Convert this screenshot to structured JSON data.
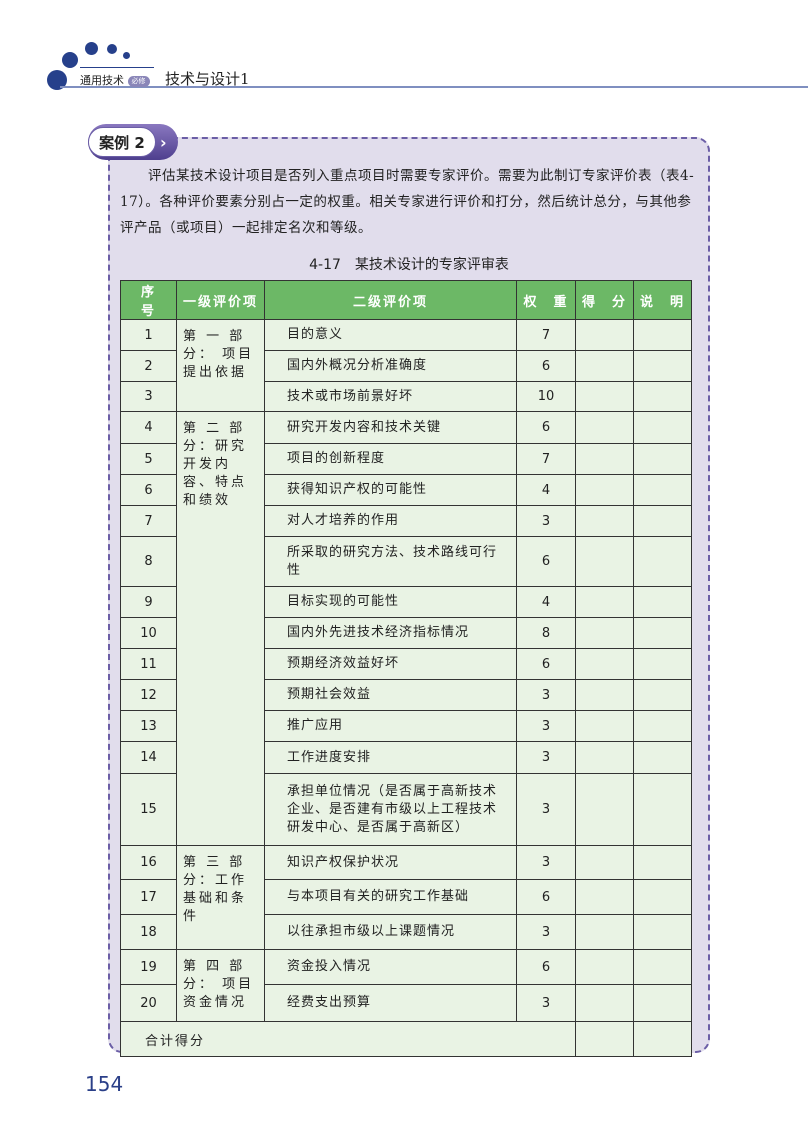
{
  "header": {
    "series": "通用技术",
    "badge": "必修",
    "book": "技术与设计1"
  },
  "case": {
    "label": "案例 2",
    "paragraph": "评估某技术设计项目是否列入重点项目时需要专家评价。需要为此制订专家评价表（表4-17）。各种评价要素分别占一定的权重。相关专家进行评价和打分，然后统计总分，与其他参评产品（或项目）一起排定名次和等级。"
  },
  "table": {
    "caption": "4-17　某技术设计的专家评审表",
    "headers": [
      "序　号",
      "一级评价项",
      "二级评价项",
      "权　重",
      "得　分",
      "说　明"
    ],
    "groups": [
      {
        "label": "第 一 部分： 项目提出依据",
        "rows": [
          [
            "1",
            "目的意义",
            "7"
          ],
          [
            "2",
            "国内外概况分析准确度",
            "6"
          ],
          [
            "3",
            "技术或市场前景好坏",
            "10"
          ]
        ]
      },
      {
        "label": "第 二 部分：研究开发内容、特点和绩效",
        "rows": [
          [
            "4",
            "研究开发内容和技术关键",
            "6"
          ],
          [
            "5",
            "项目的创新程度",
            "7"
          ],
          [
            "6",
            "获得知识产权的可能性",
            "4"
          ],
          [
            "7",
            "对人才培养的作用",
            "3"
          ],
          [
            "8",
            "所采取的研究方法、技术路线可行性",
            "6"
          ],
          [
            "9",
            "目标实现的可能性",
            "4"
          ],
          [
            "10",
            "国内外先进技术经济指标情况",
            "8"
          ],
          [
            "11",
            "预期经济效益好坏",
            "6"
          ],
          [
            "12",
            "预期社会效益",
            "3"
          ],
          [
            "13",
            "推广应用",
            "3"
          ],
          [
            "14",
            "工作进度安排",
            "3"
          ],
          [
            "15",
            "承担单位情况（是否属于高新技术企业、是否建有市级以上工程技术研发中心、是否属于高新区）",
            "3"
          ]
        ]
      },
      {
        "label": "第 三 部分：工作基础和条件",
        "rows": [
          [
            "16",
            "知识产权保护状况",
            "3"
          ],
          [
            "17",
            "与本项目有关的研究工作基础",
            "6"
          ],
          [
            "18",
            "以往承担市级以上课题情况",
            "3"
          ]
        ]
      },
      {
        "label": "第 四 部分： 项目资金情况",
        "rows": [
          [
            "19",
            "资金投入情况",
            "6"
          ],
          [
            "20",
            "经费支出预算",
            "3"
          ]
        ]
      }
    ],
    "total_label": "合计得分"
  },
  "page_number": "154"
}
